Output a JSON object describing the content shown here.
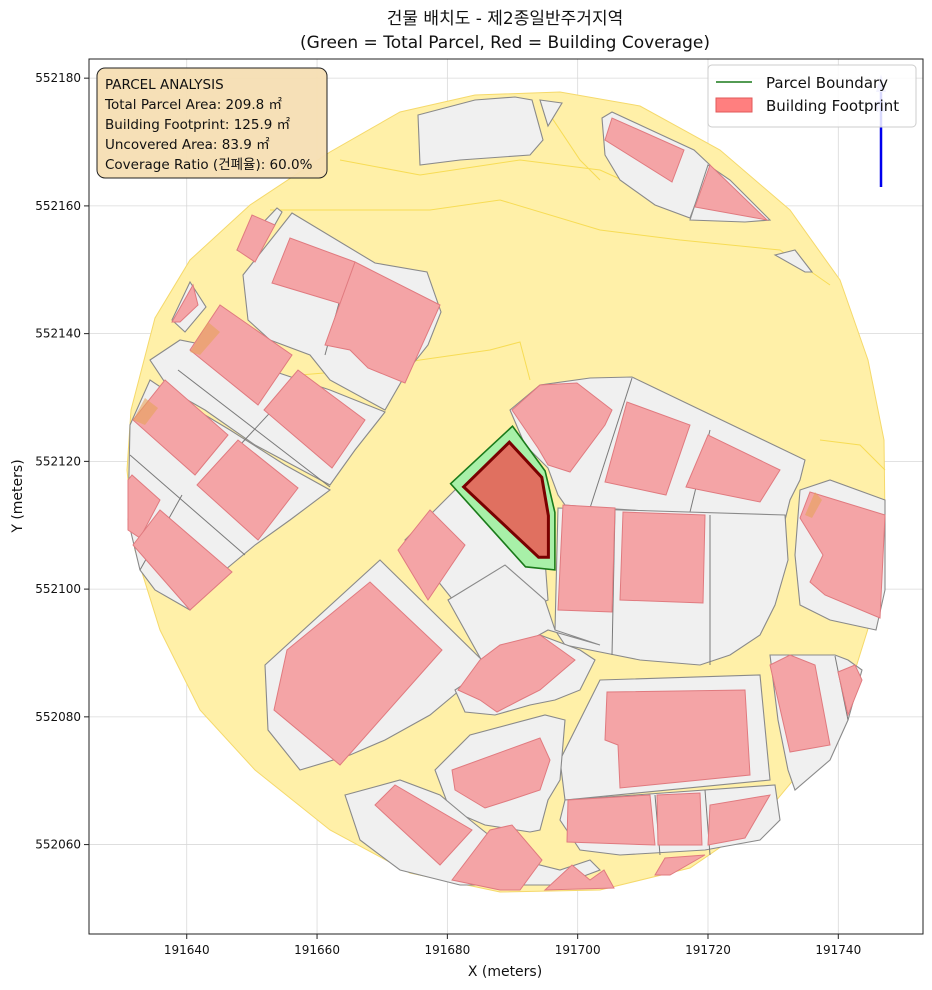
{
  "title_line1": "건물 배치도 - 제2종일반주거지역",
  "title_line2": "(Green = Total Parcel, Red = Building Coverage)",
  "xlabel": "X (meters)",
  "ylabel": "Y (meters)",
  "x_ticks": [
    "191640",
    "191660",
    "191680",
    "191700",
    "191720",
    "191740"
  ],
  "y_ticks": [
    "552180",
    "552160",
    "552140",
    "552120",
    "552100",
    "552080",
    "552060"
  ],
  "info_box": {
    "heading": "PARCEL ANALYSIS",
    "total_area": "Total Parcel Area: 209.8 ㎡",
    "footprint": "Building Footprint: 125.9 ㎡",
    "uncovered": "Uncovered Area: 83.9 ㎡",
    "coverage": "Coverage Ratio (건폐율): 60.0%"
  },
  "legend": {
    "parcel_label": "Parcel Boundary",
    "building_label": "Building Footprint",
    "parcel_color": "#1a7a1a",
    "building_color": "#ff7f7f"
  },
  "colors": {
    "road": "#fff0a8",
    "block": "#f0f0f0",
    "building": "#f4a4a6",
    "target_parcel": "#a8f0a8",
    "target_building": "#e07060",
    "north_arrow": "#0000ee"
  },
  "north_arrow_icon": "north-arrow-icon",
  "chart_data": {
    "type": "map",
    "xlim": [
      191625,
      191753
    ],
    "ylim": [
      552046,
      552183
    ],
    "grid": true,
    "legend_placement": "top-right",
    "target_parcel": {
      "boundary": [
        [
          191680.5,
          552116.5
        ],
        [
          191690,
          552125.5
        ],
        [
          191695,
          552118.5
        ],
        [
          191696.5,
          552112
        ],
        [
          191696.5,
          552103
        ],
        [
          191692,
          552103.5
        ]
      ],
      "building": [
        [
          191682.5,
          552116
        ],
        [
          191689.5,
          552123
        ],
        [
          191694.5,
          552117.5
        ],
        [
          191695.5,
          552111.5
        ],
        [
          191695.5,
          552105
        ],
        [
          191694,
          552105
        ]
      ],
      "total_area_m2": 209.8,
      "footprint_m2": 125.9,
      "uncovered_m2": 83.9,
      "coverage_pct": 60.0
    }
  }
}
